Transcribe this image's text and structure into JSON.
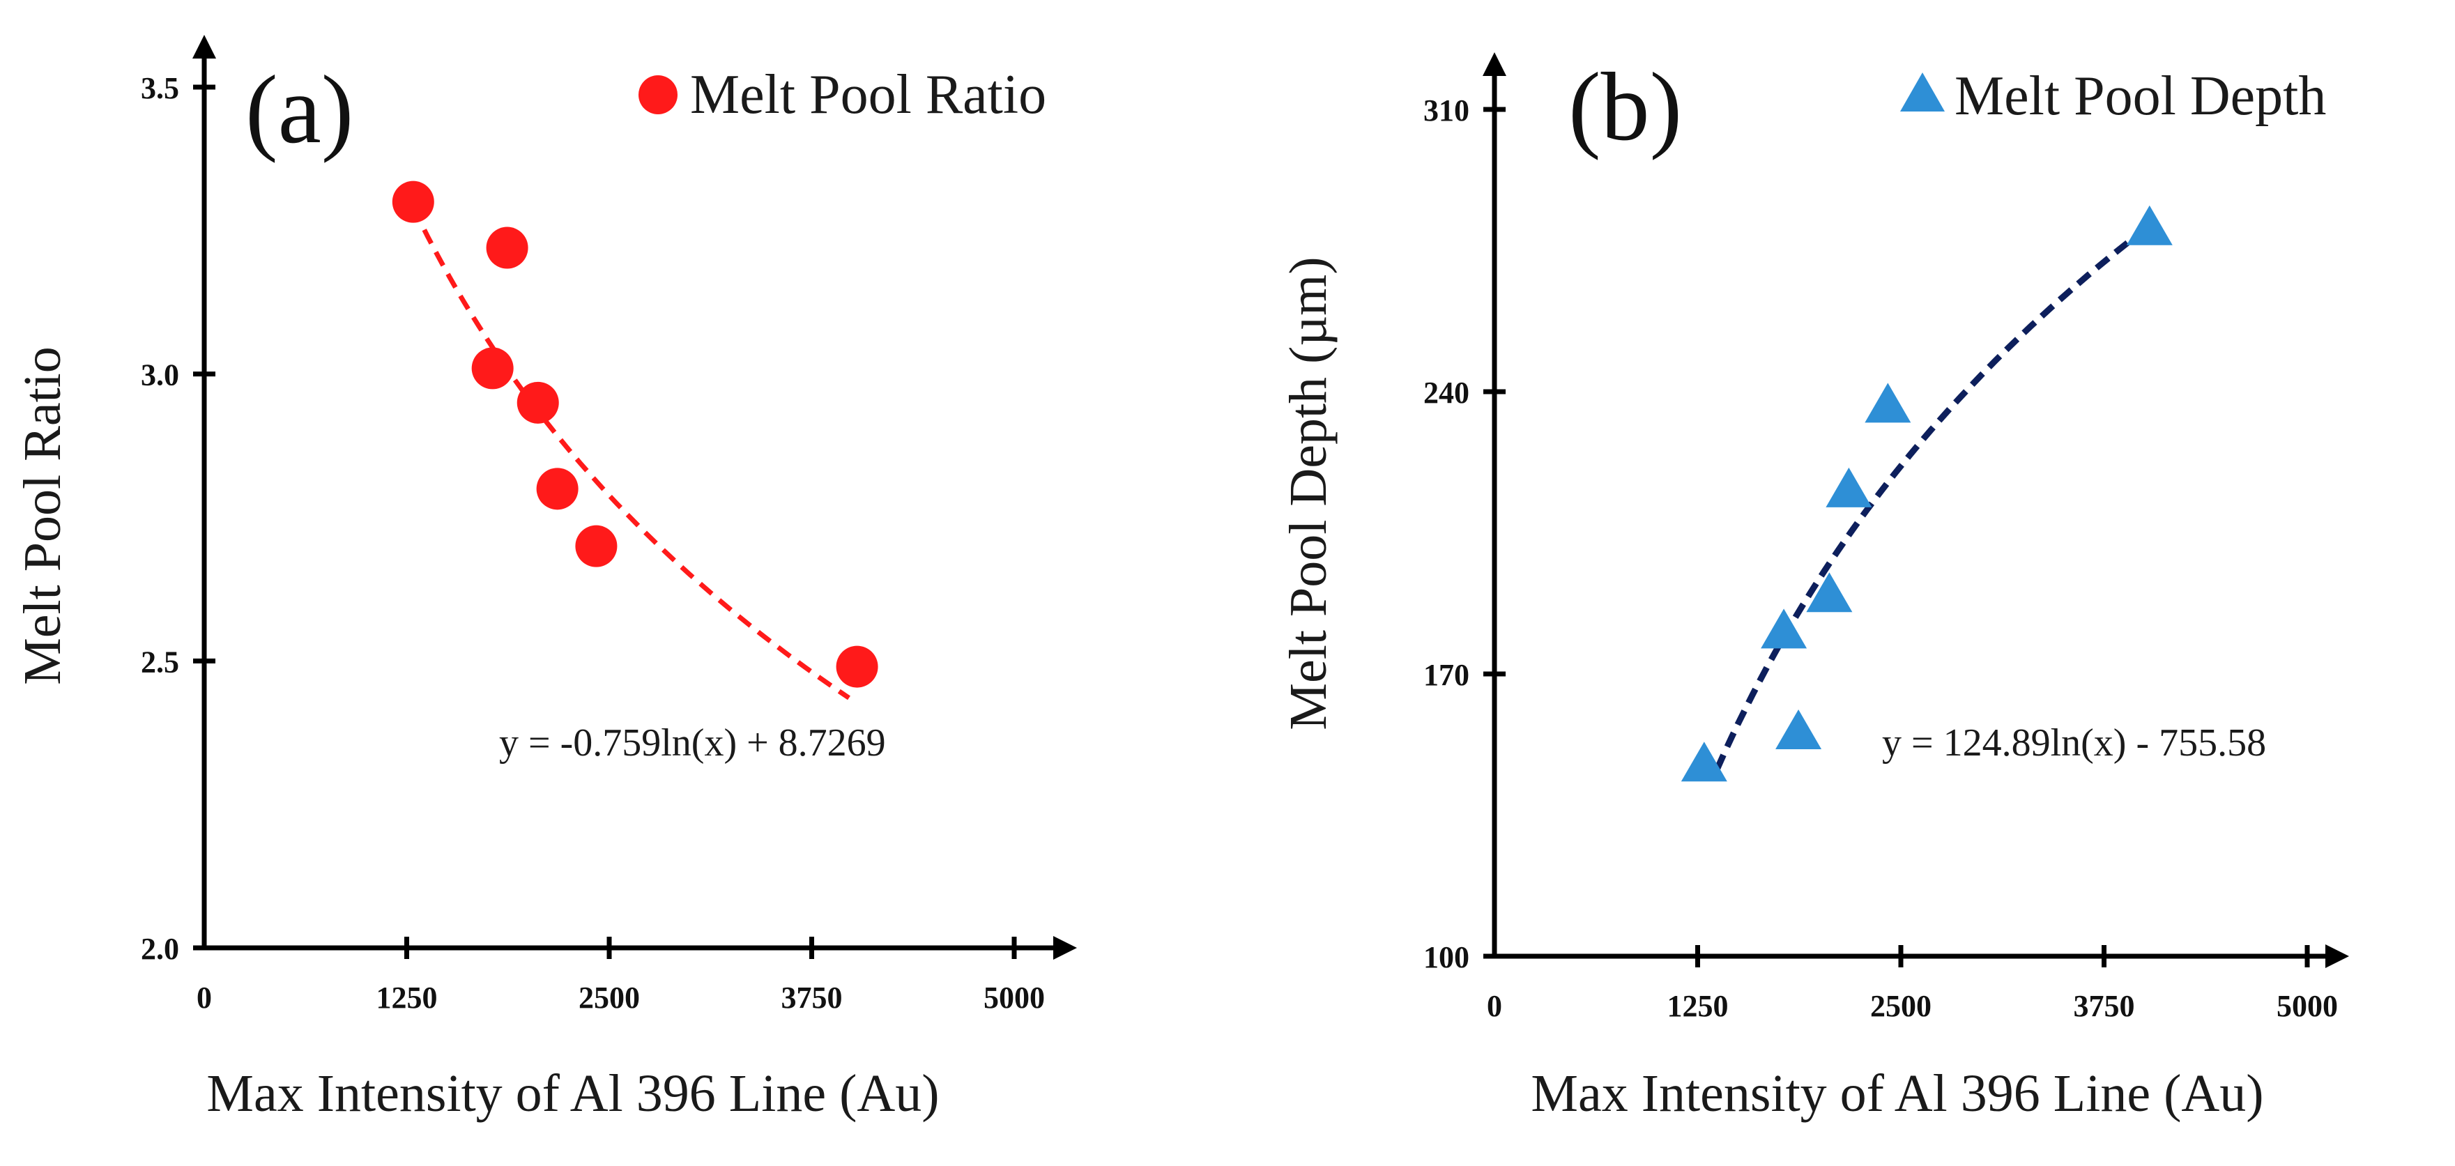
{
  "chart_data": [
    {
      "type": "scatter",
      "panel_label": "(a)",
      "xlabel": "Max Intensity of Al 396 Line (Au)",
      "ylabel": "Melt Pool Ratio",
      "xlim": [
        0,
        5000
      ],
      "ylim": [
        2.0,
        3.5
      ],
      "xticks": [
        "0",
        "1250",
        "2500",
        "3750",
        "5000"
      ],
      "yticks": [
        "2.0",
        "2.5",
        "3.0",
        "3.5"
      ],
      "series": [
        {
          "name": "Melt Pool Ratio",
          "marker": "circle",
          "color": "#ff1a1a",
          "points": [
            {
              "x": 1290,
              "y": 3.3
            },
            {
              "x": 1870,
              "y": 3.22
            },
            {
              "x": 1780,
              "y": 3.01
            },
            {
              "x": 2060,
              "y": 2.95
            },
            {
              "x": 2180,
              "y": 2.8
            },
            {
              "x": 2420,
              "y": 2.7
            },
            {
              "x": 4030,
              "y": 2.49
            }
          ]
        }
      ],
      "trendline": {
        "kind": "logarithmic",
        "a": -0.759,
        "b": 8.7269,
        "x_range": [
          1290,
          3980
        ],
        "color": "#ff1a1a",
        "equation": "y = -0.759ln(x) + 8.7269"
      }
    },
    {
      "type": "scatter",
      "panel_label": "(b)",
      "xlabel": "Max Intensity of Al 396 Line (Au)",
      "ylabel": "Melt Pool Depth (µm)",
      "xlim": [
        0,
        5000
      ],
      "ylim": [
        100,
        310
      ],
      "xticks": [
        "0",
        "1250",
        "2500",
        "3750",
        "5000"
      ],
      "yticks": [
        "100",
        "170",
        "240",
        "310"
      ],
      "series": [
        {
          "name": "Melt Pool Depth",
          "marker": "triangle",
          "color": "#2e8fd6",
          "points": [
            {
              "x": 1290,
              "y": 148
            },
            {
              "x": 1780,
              "y": 181
            },
            {
              "x": 1870,
              "y": 156
            },
            {
              "x": 2060,
              "y": 190
            },
            {
              "x": 2180,
              "y": 216
            },
            {
              "x": 2420,
              "y": 237
            },
            {
              "x": 4030,
              "y": 281
            }
          ]
        }
      ],
      "trendline": {
        "kind": "logarithmic",
        "a": 124.89,
        "b": -755.58,
        "x_range": [
          1370,
          4000
        ],
        "color": "#0d1f5c",
        "equation": "y = 124.89ln(x) - 755.58"
      }
    }
  ]
}
